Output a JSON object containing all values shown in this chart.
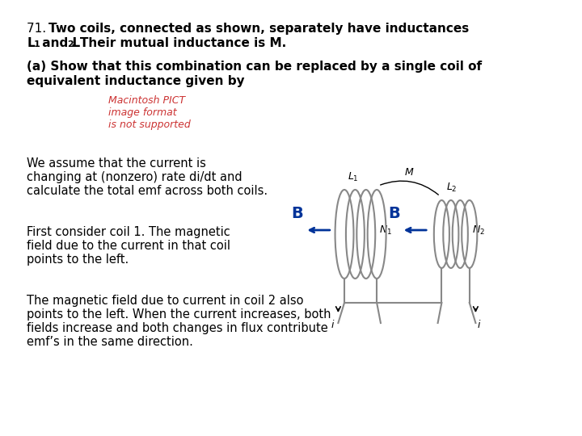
{
  "bg_color": "#ffffff",
  "title_line1": "71.  Two coils, connected as shown, separately have inductances",
  "title_line2": "L",
  "title_line2b": " and L",
  "title_line2c": ". Their mutual inductance is M.",
  "subtitle_bold": "(a) Show that this combination can be replaced by a single coil of\nequivalent inductance given by",
  "pict_text_line1": "Macintosh PICT",
  "pict_text_line2": "image format",
  "pict_text_line3": "is not supported",
  "para1_line1": "We assume that the current is",
  "para1_line2": "changing at (nonzero) rate di/dt and",
  "para1_line3": "calculate the total emf across both coils.",
  "para2_line1": "First consider coil 1. The magnetic",
  "para2_line2": "field due to the current in that coil",
  "para2_line3": "points to the left.",
  "para3": "The magnetic field due to current in coil 2 also\npoints to the left. When the current increases, both\nfields increase and both changes in flux contribute\nemf’s in the same direction.",
  "text_color": "#000000",
  "bold_color": "#000000",
  "pict_color": "#cc3333",
  "arrow_color": "#003399",
  "coil_color": "#888888",
  "wire_color": "#888888"
}
